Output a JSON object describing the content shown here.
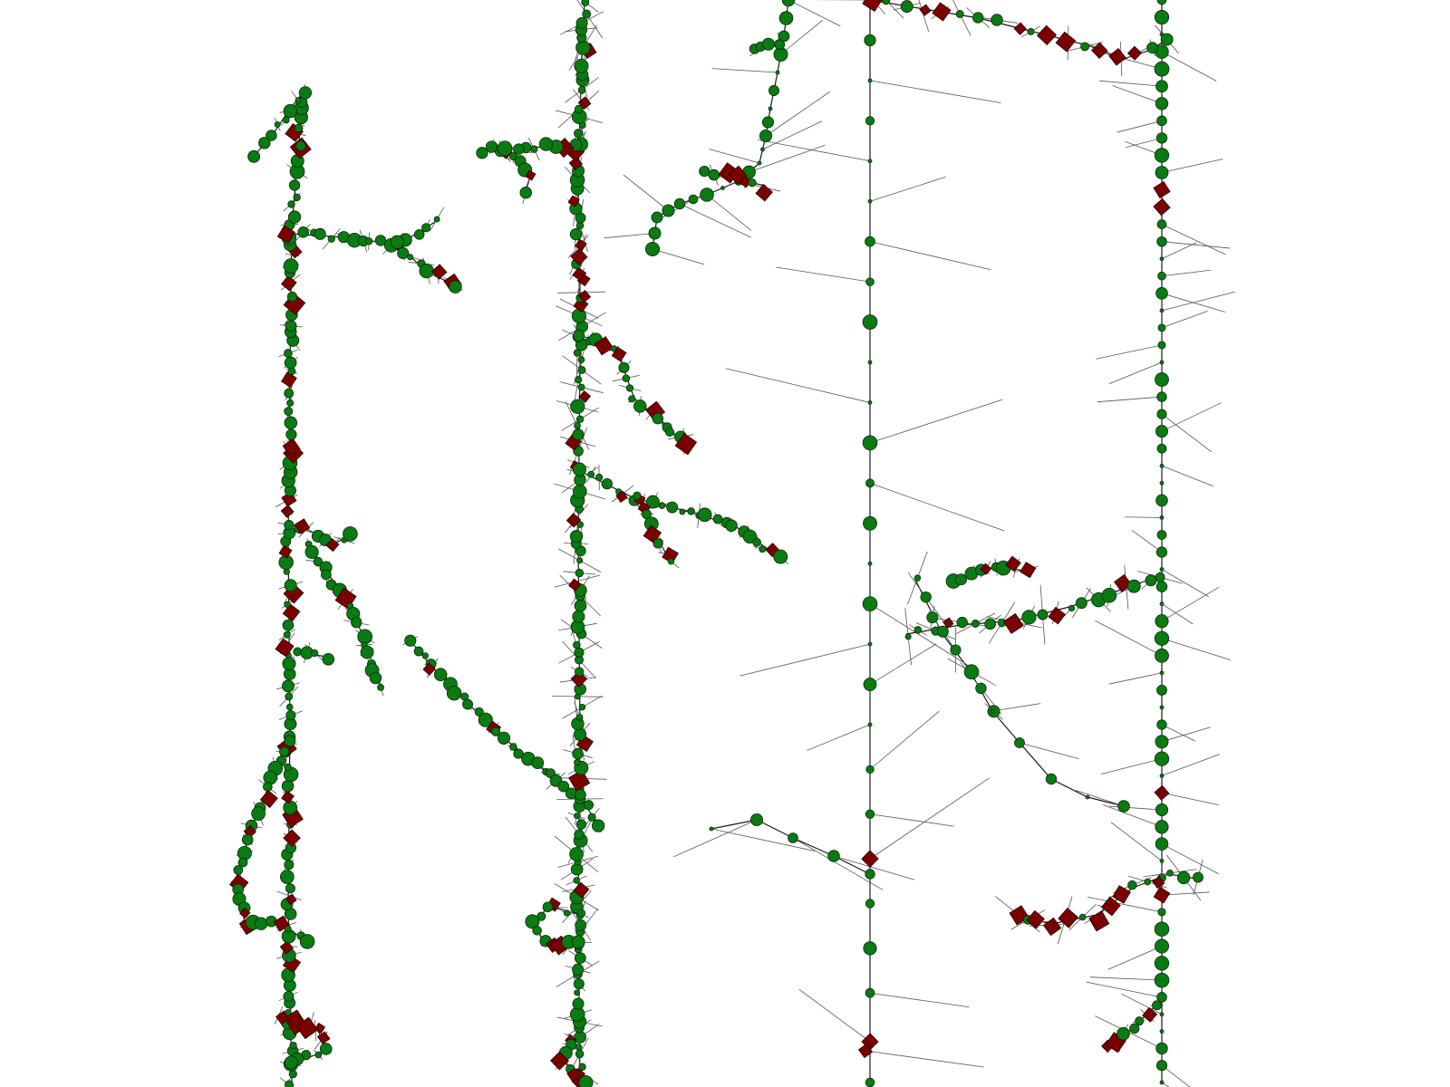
{
  "diagram": {
    "kind": "network-tree-graph",
    "labels": [],
    "colors": {
      "background": "#ffffff",
      "edge": "#1a1a1a",
      "thin_edge": "#555555",
      "circle_node": "#0a7a12",
      "diamond_node": "#7a0000"
    },
    "node_shapes": [
      "circle",
      "diamond"
    ],
    "panel_count": 4
  }
}
